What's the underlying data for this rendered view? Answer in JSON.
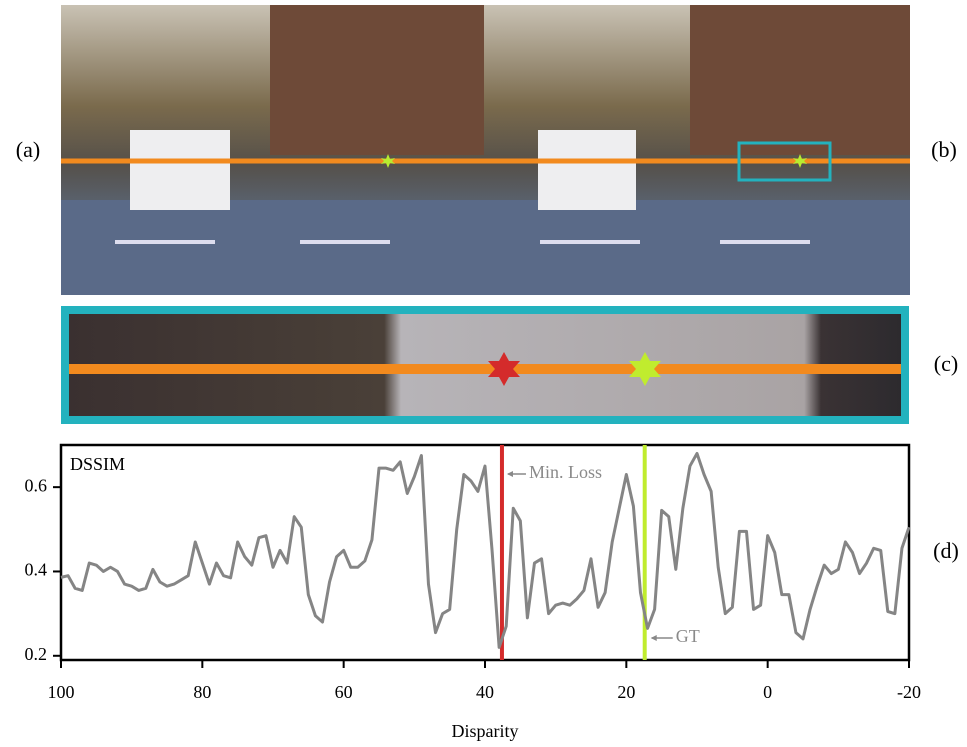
{
  "figure": {
    "labels": [
      "(a)",
      "(b)",
      "(c)",
      "(d)"
    ]
  },
  "chart_data": {
    "type": "line",
    "label": "DSSIM",
    "x_label": "Disparity",
    "xlim": [
      100,
      -20
    ],
    "xticks": [
      100,
      80,
      60,
      40,
      20,
      0,
      -20
    ],
    "ylim": [
      0.19,
      0.7
    ],
    "yticks": [
      0.2,
      0.4,
      0.6
    ],
    "x": [
      100,
      99,
      98,
      97,
      96,
      95,
      94,
      93,
      92,
      91,
      90,
      89,
      88,
      87,
      86,
      85,
      84,
      83,
      82,
      81,
      80,
      79,
      78,
      77,
      76,
      75,
      74,
      73,
      72,
      71,
      70,
      69,
      68,
      67,
      66,
      65,
      64,
      63,
      62,
      61,
      60,
      59,
      58,
      57,
      56,
      55,
      54,
      53,
      52,
      51,
      50,
      49,
      48,
      47,
      46,
      45,
      44,
      43,
      42,
      41,
      40,
      39,
      38,
      37,
      36,
      35,
      34,
      33,
      32,
      31,
      30,
      29,
      28,
      27,
      26,
      25,
      24,
      23,
      22,
      21,
      20,
      19,
      18,
      17,
      16,
      15,
      14,
      13,
      12,
      11,
      10,
      9,
      8,
      7,
      6,
      5,
      4,
      3,
      2,
      1,
      0,
      -1,
      -2,
      -3,
      -4,
      -5,
      -6,
      -7,
      -8,
      -9,
      -10,
      -11,
      -12,
      -13,
      -14,
      -15,
      -16,
      -17,
      -18,
      -19,
      -20
    ],
    "series": [
      {
        "color": "#858585",
        "values": [
          0.386,
          0.39,
          0.36,
          0.355,
          0.42,
          0.415,
          0.4,
          0.41,
          0.4,
          0.37,
          0.365,
          0.355,
          0.36,
          0.405,
          0.375,
          0.365,
          0.37,
          0.38,
          0.39,
          0.47,
          0.42,
          0.37,
          0.42,
          0.39,
          0.385,
          0.47,
          0.435,
          0.415,
          0.48,
          0.485,
          0.41,
          0.45,
          0.42,
          0.53,
          0.505,
          0.345,
          0.295,
          0.28,
          0.375,
          0.435,
          0.45,
          0.41,
          0.41,
          0.425,
          0.475,
          0.645,
          0.645,
          0.64,
          0.66,
          0.585,
          0.625,
          0.675,
          0.37,
          0.255,
          0.3,
          0.31,
          0.5,
          0.63,
          0.615,
          0.59,
          0.65,
          0.45,
          0.22,
          0.27,
          0.55,
          0.52,
          0.29,
          0.42,
          0.43,
          0.3,
          0.32,
          0.325,
          0.32,
          0.335,
          0.355,
          0.43,
          0.315,
          0.35,
          0.47,
          0.55,
          0.63,
          0.555,
          0.35,
          0.265,
          0.31,
          0.545,
          0.53,
          0.405,
          0.55,
          0.65,
          0.68,
          0.63,
          0.59,
          0.41,
          0.3,
          0.315,
          0.495,
          0.495,
          0.31,
          0.32,
          0.485,
          0.445,
          0.345,
          0.345,
          0.255,
          0.24,
          0.31,
          0.365,
          0.415,
          0.395,
          0.405,
          0.47,
          0.445,
          0.395,
          0.42,
          0.455,
          0.45,
          0.305,
          0.3,
          0.455,
          0.505
        ]
      }
    ],
    "annotations": [
      {
        "label": "Min. Loss",
        "x": 37.6,
        "color": "#d42b2b"
      },
      {
        "label": "GT",
        "x": 17.4,
        "color": "#c0ec2e"
      }
    ]
  }
}
